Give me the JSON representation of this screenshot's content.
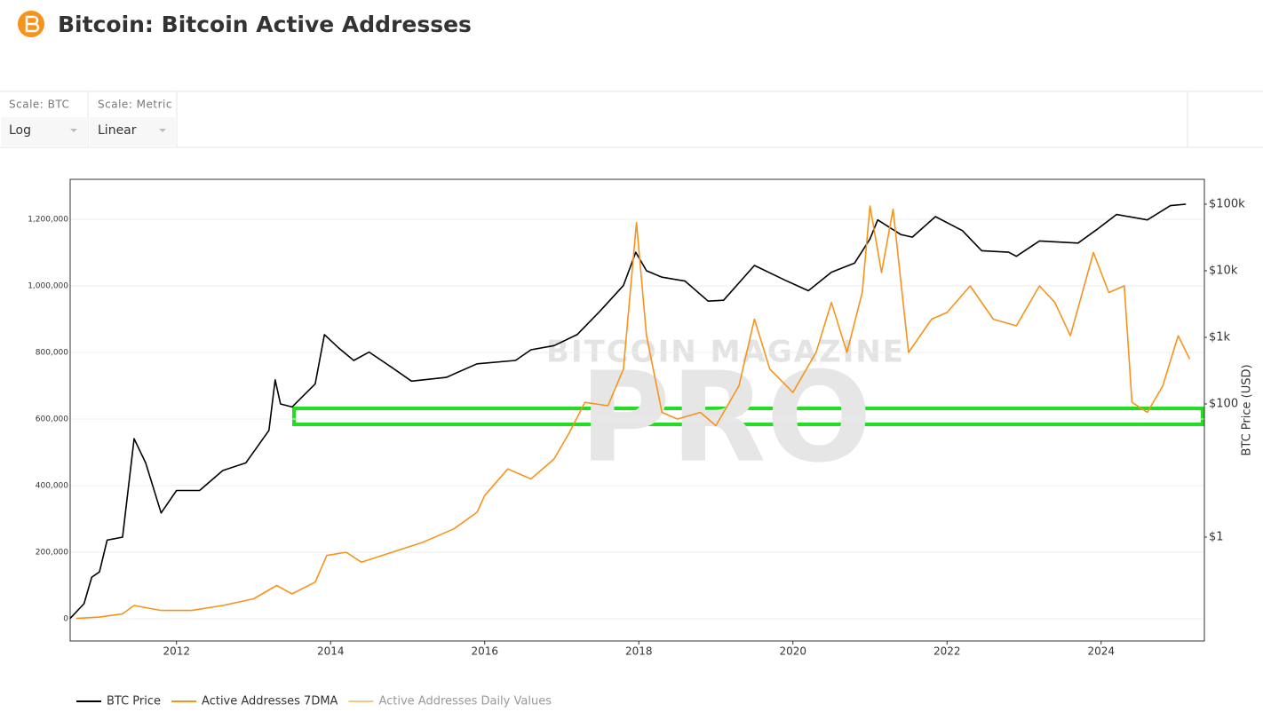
{
  "header": {
    "title": "Bitcoin: Bitcoin Active Addresses"
  },
  "controls": [
    {
      "label": "Scale: BTC",
      "value": "Log"
    },
    {
      "label": "Scale: Metric",
      "value": "Linear"
    }
  ],
  "chart_data": {
    "type": "line",
    "watermark": [
      "BITCOIN MAGAZINE",
      "PRO"
    ],
    "y2_label": "BTC Price (USD)",
    "xlim": [
      2010.62,
      2025.34
    ],
    "xticks": [
      2012,
      2014,
      2016,
      2018,
      2020,
      2022,
      2024
    ],
    "ylim": [
      -66667,
      1320000
    ],
    "yticks": [
      0,
      {
        "value": 200000,
        "label": "200,000"
      },
      {
        "value": 400000,
        "label": "400,000"
      },
      {
        "value": 600000,
        "label": "600,000"
      },
      {
        "value": 800000,
        "label": "800,000"
      },
      {
        "value": 1000000,
        "label": "1,000,000"
      },
      {
        "value": 1200000,
        "label": "1,200,000"
      }
    ],
    "y2lim": [
      0.0275,
      236000
    ],
    "y2_log": true,
    "y2ticks": [
      {
        "value": 1,
        "label": "$1"
      },
      {
        "value": 100,
        "label": "$100"
      },
      {
        "value": 1000,
        "label": "$1k"
      },
      {
        "value": 10000,
        "label": "$10k"
      },
      {
        "value": 100000,
        "label": "$100k"
      }
    ],
    "grid": true,
    "series": [
      {
        "name": "BTC Price",
        "color": "#000000",
        "axis": "y2",
        "x": [
          2010.62,
          2010.8,
          2010.9,
          2011.0,
          2011.1,
          2011.3,
          2011.45,
          2011.6,
          2011.8,
          2012.0,
          2012.3,
          2012.6,
          2012.9,
          2013.2,
          2013.28,
          2013.35,
          2013.5,
          2013.8,
          2013.92,
          2014.1,
          2014.3,
          2014.5,
          2014.8,
          2015.05,
          2015.5,
          2015.9,
          2016.4,
          2016.6,
          2016.9,
          2017.2,
          2017.5,
          2017.8,
          2017.96,
          2018.1,
          2018.3,
          2018.6,
          2018.9,
          2019.1,
          2019.5,
          2019.9,
          2020.2,
          2020.5,
          2020.8,
          2021.0,
          2021.1,
          2021.4,
          2021.55,
          2021.85,
          2022.2,
          2022.45,
          2022.8,
          2022.9,
          2023.2,
          2023.7,
          2023.95,
          2024.2,
          2024.6,
          2024.9,
          2025.1
        ],
        "values": [
          0.06,
          0.1,
          0.25,
          0.3,
          0.9,
          1,
          30,
          13,
          2.3,
          5,
          5,
          10,
          13,
          40,
          230,
          100,
          90,
          200,
          1100,
          700,
          450,
          600,
          350,
          220,
          250,
          400,
          450,
          650,
          750,
          1100,
          2500,
          6000,
          19000,
          10000,
          8000,
          7000,
          3500,
          3600,
          12000,
          7200,
          5000,
          9500,
          13000,
          30000,
          58000,
          35000,
          32000,
          65000,
          40000,
          20000,
          19000,
          16500,
          28000,
          26000,
          42000,
          70000,
          58000,
          95000,
          100000
        ]
      },
      {
        "name": "Active Addresses 7DMA",
        "color": "#f7931a",
        "x": [
          2010.7,
          2011.0,
          2011.3,
          2011.45,
          2011.8,
          2012.2,
          2012.6,
          2013.0,
          2013.3,
          2013.5,
          2013.8,
          2013.95,
          2014.2,
          2014.4,
          2014.8,
          2015.2,
          2015.6,
          2015.9,
          2016.0,
          2016.3,
          2016.6,
          2016.9,
          2017.1,
          2017.3,
          2017.6,
          2017.8,
          2017.97,
          2018.1,
          2018.3,
          2018.5,
          2018.8,
          2019.0,
          2019.3,
          2019.5,
          2019.7,
          2020.0,
          2020.3,
          2020.5,
          2020.7,
          2020.9,
          2021.0,
          2021.15,
          2021.3,
          2021.5,
          2021.8,
          2022.0,
          2022.3,
          2022.6,
          2022.9,
          2023.2,
          2023.4,
          2023.6,
          2023.9,
          2024.1,
          2024.3,
          2024.4,
          2024.6,
          2024.8,
          2025.0,
          2025.15
        ],
        "values": [
          1000,
          5000,
          15000,
          40000,
          25000,
          25000,
          40000,
          60000,
          100000,
          75000,
          110000,
          190000,
          200000,
          170000,
          200000,
          230000,
          270000,
          320000,
          370000,
          450000,
          420000,
          480000,
          560000,
          650000,
          640000,
          750000,
          1190000,
          850000,
          620000,
          600000,
          620000,
          580000,
          700000,
          900000,
          750000,
          680000,
          800000,
          950000,
          800000,
          980000,
          1240000,
          1040000,
          1230000,
          800000,
          900000,
          920000,
          1000000,
          900000,
          880000,
          1000000,
          950000,
          850000,
          1100000,
          980000,
          1000000,
          650000,
          620000,
          700000,
          850000,
          780000
        ]
      },
      {
        "name": "Active Addresses Daily Values",
        "color": "#f9c77a",
        "visible": false
      }
    ]
  }
}
